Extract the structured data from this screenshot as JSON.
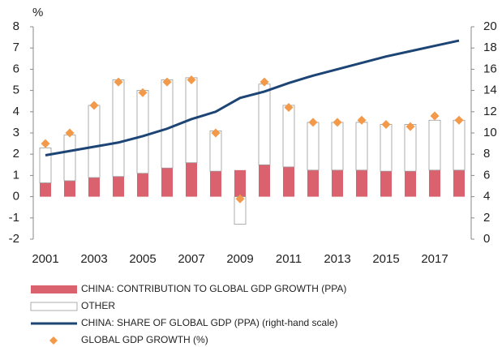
{
  "chart_data": {
    "type": "bar",
    "stacked": true,
    "y_label": "%",
    "categories": [
      "2001",
      null,
      "2003",
      null,
      "2005",
      null,
      "2007",
      null,
      "2009",
      null,
      "2011",
      null,
      "2013",
      null,
      "2015",
      null,
      "2017",
      null
    ],
    "series": [
      {
        "name": "CHINA: CONTRIBUTION TO GLOBAL GDP GROWTH (PPA)",
        "type": "bar",
        "color": "#d9626e",
        "values": [
          0.65,
          0.75,
          0.9,
          0.95,
          1.1,
          1.35,
          1.6,
          1.2,
          1.25,
          1.5,
          1.4,
          1.25,
          1.25,
          1.25,
          1.2,
          1.2,
          1.25,
          1.25
        ]
      },
      {
        "name": "OTHER",
        "type": "bar",
        "color": "#ffffff",
        "stroke": "#9a9a9a",
        "values": [
          1.65,
          2.15,
          3.4,
          4.55,
          3.9,
          4.15,
          4.0,
          1.9,
          -1.3,
          3.8,
          2.9,
          2.25,
          2.25,
          2.25,
          2.2,
          2.2,
          2.35,
          2.35
        ]
      },
      {
        "name": "CHINA: SHARE OF GLOBAL GDP (PPA) (right-hand scale)",
        "type": "line",
        "axis": "y2",
        "color": "#1c4475",
        "values": [
          7.9,
          8.3,
          8.7,
          9.1,
          9.7,
          10.4,
          11.3,
          12.0,
          13.3,
          13.9,
          14.7,
          15.4,
          16.0,
          16.6,
          17.2,
          17.7,
          18.2,
          18.7
        ]
      },
      {
        "name": "GLOBAL GDP GROWTH (%)",
        "type": "scatter",
        "color": "#f2994a",
        "values": [
          2.5,
          3.0,
          4.3,
          5.4,
          4.9,
          5.4,
          5.5,
          3.0,
          -0.1,
          5.4,
          4.2,
          3.5,
          3.5,
          3.6,
          3.4,
          3.3,
          3.8,
          3.6
        ]
      }
    ],
    "ylim": [
      -2,
      8
    ],
    "yticks": [
      -2,
      -1,
      0,
      1,
      2,
      3,
      4,
      5,
      6,
      7,
      8
    ],
    "y2lim": [
      0,
      20
    ],
    "y2ticks": [
      0,
      2,
      4,
      6,
      8,
      10,
      12,
      14,
      16,
      18,
      20
    ]
  }
}
